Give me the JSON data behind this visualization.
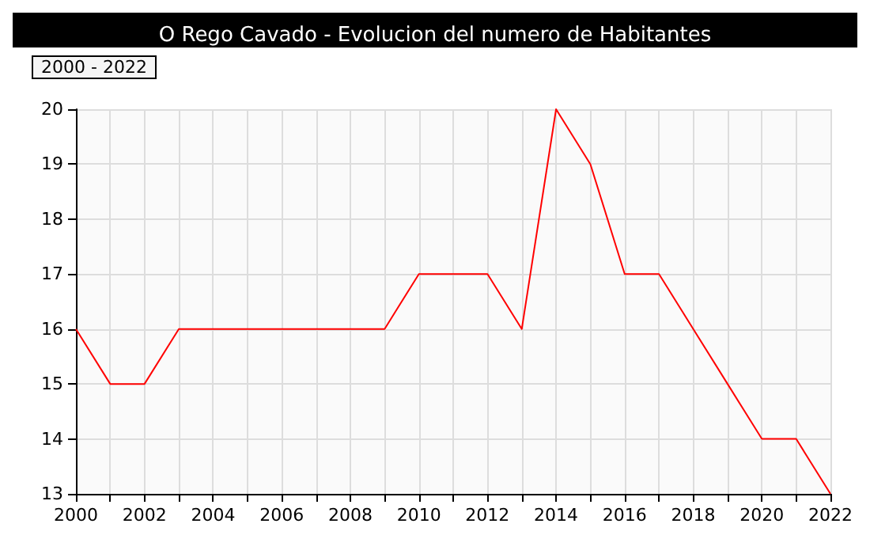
{
  "chart_data": {
    "type": "line",
    "title": "O Rego Cavado - Evolucion del numero de Habitantes",
    "subtitle": "2000 - 2022",
    "x": [
      2000,
      2001,
      2002,
      2003,
      2004,
      2005,
      2006,
      2007,
      2008,
      2009,
      2010,
      2011,
      2012,
      2013,
      2014,
      2015,
      2016,
      2017,
      2018,
      2019,
      2020,
      2021,
      2022
    ],
    "series": [
      {
        "color": "#ff0000",
        "values": [
          16,
          15,
          15,
          16,
          16,
          16,
          16,
          16,
          16,
          16,
          17,
          17,
          17,
          16,
          20,
          19,
          17,
          17,
          16,
          15,
          14,
          14,
          13
        ]
      }
    ],
    "xlim": [
      2000,
      2022
    ],
    "xticks": [
      2000,
      {
        "value": 2001,
        "label": null
      },
      2002,
      {
        "value": 2003,
        "label": null
      },
      2004,
      {
        "value": 2005,
        "label": null
      },
      2006,
      {
        "value": 2007,
        "label": null
      },
      2008,
      {
        "value": 2009,
        "label": null
      },
      2010,
      {
        "value": 2011,
        "label": null
      },
      2012,
      {
        "value": 2013,
        "label": null
      },
      2014,
      {
        "value": 2015,
        "label": null
      },
      2016,
      {
        "value": 2017,
        "label": null
      },
      2018,
      {
        "value": 2019,
        "label": null
      },
      2020,
      {
        "value": 2021,
        "label": null
      },
      2022
    ],
    "ylim": [
      13,
      20
    ],
    "yticks": [
      13,
      14,
      15,
      16,
      17,
      18,
      19,
      20
    ],
    "grid": true,
    "marker": "none",
    "line_style": "solid"
  }
}
